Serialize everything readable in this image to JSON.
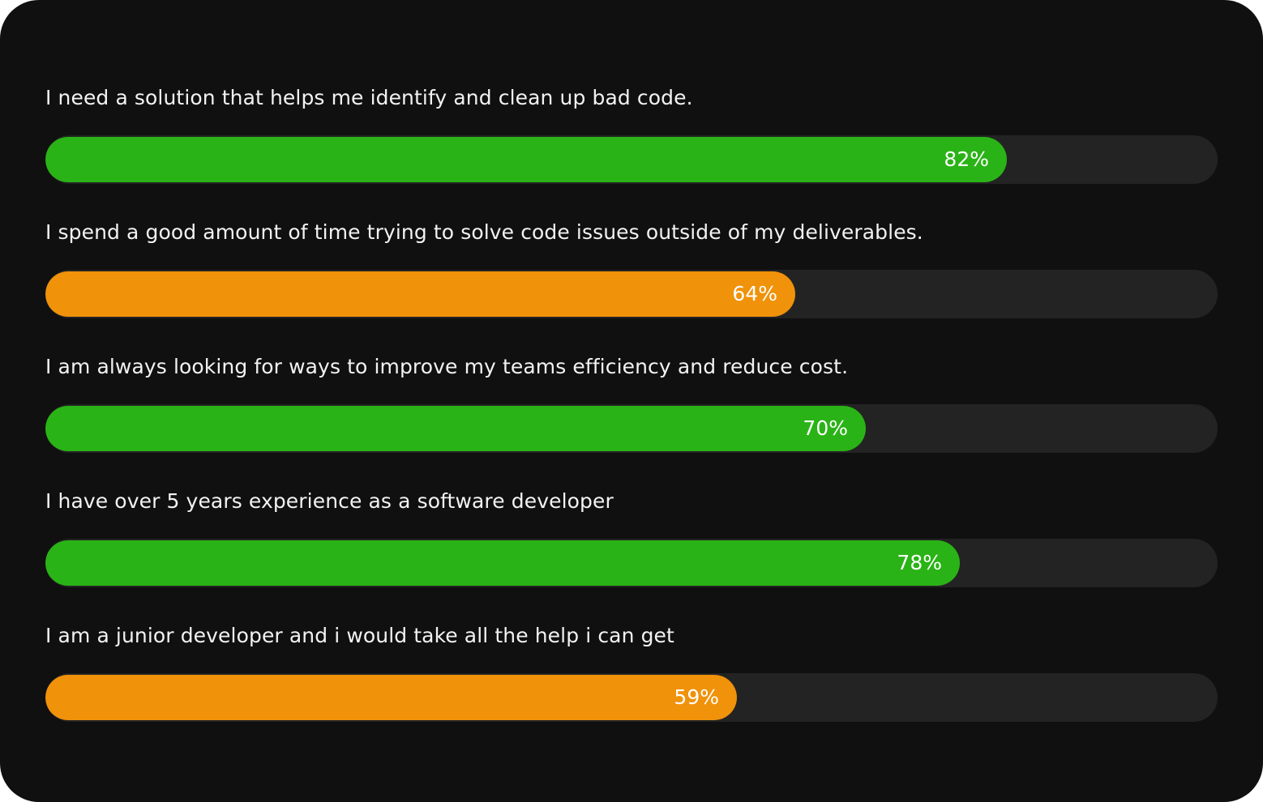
{
  "chart_data": {
    "type": "bar",
    "orientation": "horizontal",
    "xlim": [
      0,
      100
    ],
    "grid": false,
    "categories": [
      "I need a solution that helps me identify and clean up bad code.",
      "I spend a good amount of time trying to solve code issues outside of my deliverables.",
      "I am always looking for ways to improve my teams efficiency and reduce cost.",
      "I have over 5 years experience as a software developer",
      "I am a junior developer and i would take all the help i can get"
    ],
    "values": [
      82,
      64,
      70,
      78,
      59
    ],
    "labels": [
      "82%",
      "64%",
      "70%",
      "78%",
      "59%"
    ],
    "colors": [
      "#2ab316",
      "#f0920a",
      "#2ab316",
      "#2ab316",
      "#f0920a"
    ]
  },
  "theme": {
    "background": "#101010",
    "track": "#232323",
    "text": "#f2f2f2"
  }
}
